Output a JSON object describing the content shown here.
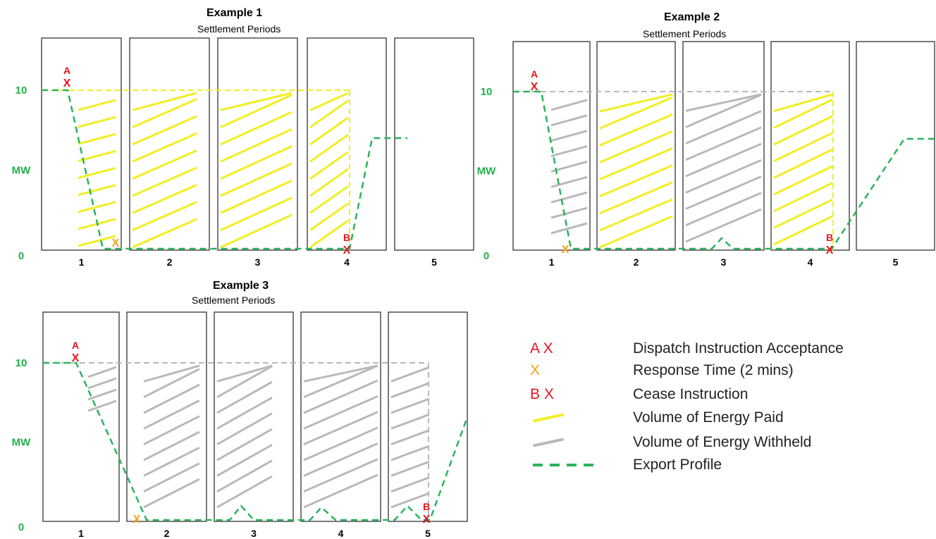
{
  "colors": {
    "paid": "#f2ee22",
    "withheld": "#b9b9b9",
    "export": "#2bb35c",
    "marker_red": "#e8141d",
    "marker_orange": "#f5a21b",
    "axis_green": "#22b14c"
  },
  "common": {
    "subtitle": "Settlement Periods",
    "y_top": "10",
    "y_mid": "MW",
    "y_bottom": "0",
    "period_labels": [
      "1",
      "2",
      "3",
      "4",
      "5"
    ],
    "marker_a": "A",
    "marker_b": "B",
    "marker_x": "X"
  },
  "examples": [
    {
      "title": "Example 1",
      "fill_type": "paid"
    },
    {
      "title": "Example 2",
      "fill_type": "mixed"
    },
    {
      "title": "Example 3",
      "fill_type": "withheld"
    }
  ],
  "legend": [
    {
      "symbol": "A X",
      "label": "Dispatch Instruction Acceptance"
    },
    {
      "symbol": "X",
      "label": "Response Time (2 mins)"
    },
    {
      "symbol": "B X",
      "label": "Cease Instruction"
    },
    {
      "symbol": "",
      "label": "Volume of Energy Paid"
    },
    {
      "symbol": "",
      "label": "Volume of Energy Withheld"
    },
    {
      "symbol": "",
      "label": "Export Profile"
    }
  ]
}
